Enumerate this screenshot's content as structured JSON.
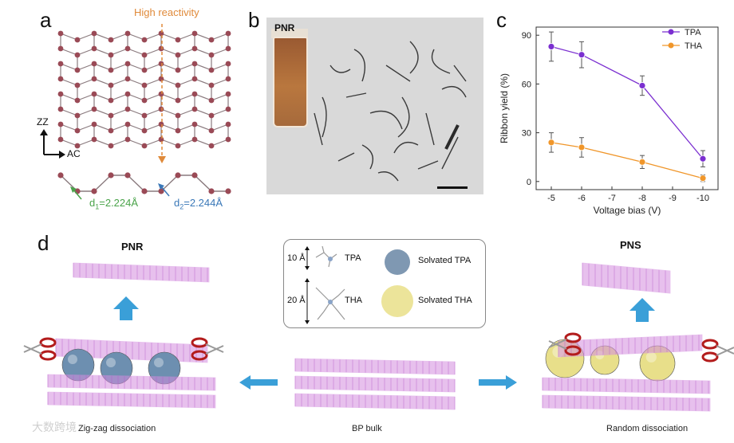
{
  "panel_a": {
    "letter": "a",
    "reactivity_label": "High reactivity",
    "axis_zz": "ZZ",
    "axis_ac": "AC",
    "d1_label": "d",
    "d1_sub": "1",
    "d1_value": "=2.224Å",
    "d2_label": "d",
    "d2_sub": "2",
    "d2_value": "=2.244Å"
  },
  "panel_b": {
    "letter": "b",
    "inset_label": "PNR"
  },
  "panel_c": {
    "letter": "c",
    "chart_data": {
      "type": "line",
      "x": [
        -5,
        -6,
        -8,
        -10
      ],
      "categories_ticks": [
        "-5",
        "-6",
        "-7",
        "-8",
        "-9",
        "-10"
      ],
      "series": [
        {
          "name": "TPA",
          "values": [
            83,
            78,
            59,
            14
          ],
          "errors": [
            9,
            8,
            6,
            5
          ],
          "color": "#7b2fd0"
        },
        {
          "name": "THA",
          "values": [
            24,
            21,
            12,
            2
          ],
          "errors": [
            6,
            6,
            4,
            2
          ],
          "color": "#f0962a"
        }
      ],
      "xlabel": "Voltage bias (V)",
      "ylabel": "Ribbon yield (%)",
      "ylim": [
        -5,
        95
      ],
      "yticks": [
        "0",
        "30",
        "60",
        "90"
      ],
      "xlim": [
        -4.5,
        -10.5
      ],
      "legend": "top-right",
      "grid": false
    }
  },
  "panel_d": {
    "letter": "d",
    "left_title": "PNR",
    "right_title": "PNS",
    "legend": {
      "tpa_size": "10 Å",
      "tpa_name": "TPA",
      "tha_size": "20 Å",
      "tha_name": "THA",
      "solvated_tpa": "Solvated TPA",
      "solvated_tha": "Solvated THA"
    },
    "captions": {
      "left": "Zig-zag dissociation",
      "center": "BP bulk",
      "right": "Random dissociation"
    },
    "colors": {
      "lattice": "#d48ee0",
      "tpa_sphere": "#6d8fb0",
      "tha_sphere": "#e8df8a",
      "arrow": "#3a9fd8",
      "scissor": "#b31c1c"
    }
  },
  "watermark": "大数跨境"
}
